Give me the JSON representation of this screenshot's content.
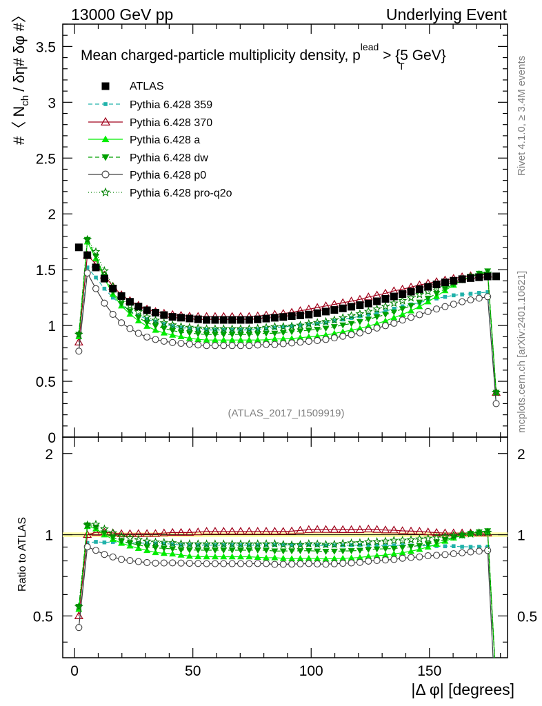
{
  "header": {
    "left": "13000 GeV pp",
    "right": "Underlying Event"
  },
  "side_text": {
    "rivet": "Rivet 4.1.0, ≥ 3.4M events",
    "mcplots": "mcplots.cern.ch [arXiv:2401.10621]"
  },
  "watermark": "(ATLAS_2017_I1509919)",
  "chart_data": {
    "type": "line",
    "title": {
      "main": "Mean charged-particle multiplicity density, p",
      "sup": "lead",
      "sub": "T",
      "tail": " > {5 GeV}"
    },
    "xlabel": "|Δ φ| [degrees]",
    "ylabel_main": {
      "a": "#〈 N",
      "sub": "ch",
      "b": "/ δη# δφ #〉"
    },
    "ylabel_ratio": "Ratio to ATLAS",
    "xlim": [
      -5,
      183
    ],
    "ylim": [
      0,
      3.7
    ],
    "ratio_ylim": [
      0.35,
      2.3
    ],
    "x_ticks": [
      "0",
      "50",
      "100",
      "150"
    ],
    "y_ticks": [
      "0",
      "0.5",
      "1",
      "1.5",
      "2",
      "2.5",
      "3",
      "3.5"
    ],
    "ratio_ticks_left": [
      "0.5",
      "1",
      "2"
    ],
    "ratio_ticks_right": [
      "0.5",
      "1",
      "2"
    ],
    "data_anchors_x": [
      1.8,
      5.4,
      9,
      12.6,
      16.2,
      20,
      25,
      30,
      35,
      40,
      45,
      50,
      55,
      60,
      65,
      70,
      75,
      80,
      85,
      90,
      95,
      100,
      105,
      110,
      115,
      120,
      125,
      130,
      135,
      140,
      145,
      150,
      155,
      160,
      165,
      170,
      175,
      178.2
    ],
    "legend": [
      "ATLAS",
      "Pythia 6.428 359",
      "Pythia 6.428 370",
      "Pythia 6.428 a",
      "Pythia 6.428 dw",
      "Pythia 6.428 p0",
      "Pythia 6.428 pro-q2o"
    ],
    "series": [
      {
        "name": "ATLAS",
        "color": "#000000",
        "marker": "square",
        "anchors_y": [
          1.7,
          1.63,
          1.52,
          1.42,
          1.33,
          1.26,
          1.19,
          1.14,
          1.11,
          1.08,
          1.07,
          1.06,
          1.05,
          1.05,
          1.05,
          1.05,
          1.05,
          1.06,
          1.07,
          1.08,
          1.09,
          1.1,
          1.12,
          1.14,
          1.16,
          1.18,
          1.2,
          1.23,
          1.26,
          1.29,
          1.32,
          1.35,
          1.38,
          1.4,
          1.42,
          1.43,
          1.44,
          1.44
        ]
      },
      {
        "name": "Pythia 6.428 359",
        "color": "#20B2AA",
        "marker": "small-square",
        "dash": "6,4",
        "anchors_y": [
          0.77,
          1.52,
          1.43,
          1.33,
          1.25,
          1.18,
          1.11,
          1.06,
          1.03,
          1.0,
          0.98,
          0.97,
          0.96,
          0.96,
          0.96,
          0.96,
          0.96,
          0.97,
          0.98,
          0.99,
          1.0,
          1.01,
          1.02,
          1.04,
          1.06,
          1.08,
          1.1,
          1.12,
          1.15,
          1.18,
          1.2,
          1.23,
          1.25,
          1.27,
          1.28,
          1.29,
          1.3,
          0.3
        ]
      },
      {
        "name": "Pythia 6.428 370",
        "color": "#A0001A",
        "marker": "open-triangle",
        "dash": "",
        "anchors_y": [
          0.85,
          1.63,
          1.55,
          1.45,
          1.35,
          1.27,
          1.2,
          1.15,
          1.12,
          1.1,
          1.09,
          1.08,
          1.08,
          1.08,
          1.08,
          1.08,
          1.08,
          1.09,
          1.1,
          1.11,
          1.13,
          1.15,
          1.17,
          1.19,
          1.21,
          1.23,
          1.26,
          1.28,
          1.31,
          1.33,
          1.36,
          1.38,
          1.4,
          1.42,
          1.44,
          1.45,
          1.46,
          0.4
        ]
      },
      {
        "name": "Pythia 6.428 a",
        "color": "#00EE00",
        "marker": "triangle",
        "dash": "",
        "anchors_y": [
          0.9,
          1.75,
          1.6,
          1.42,
          1.28,
          1.17,
          1.07,
          1.0,
          0.95,
          0.92,
          0.9,
          0.88,
          0.87,
          0.87,
          0.87,
          0.87,
          0.87,
          0.87,
          0.88,
          0.88,
          0.89,
          0.9,
          0.91,
          0.93,
          0.95,
          0.97,
          1.0,
          1.03,
          1.07,
          1.11,
          1.16,
          1.22,
          1.29,
          1.36,
          1.42,
          1.46,
          1.48,
          0.4
        ]
      },
      {
        "name": "Pythia 6.428 dw",
        "color": "#00A000",
        "marker": "inverted-triangle",
        "dash": "6,4",
        "anchors_y": [
          0.92,
          1.77,
          1.62,
          1.44,
          1.3,
          1.19,
          1.1,
          1.03,
          0.99,
          0.96,
          0.94,
          0.93,
          0.92,
          0.92,
          0.92,
          0.92,
          0.92,
          0.93,
          0.93,
          0.94,
          0.95,
          0.96,
          0.97,
          0.99,
          1.01,
          1.03,
          1.06,
          1.09,
          1.12,
          1.16,
          1.2,
          1.25,
          1.31,
          1.37,
          1.42,
          1.46,
          1.49,
          0.4
        ]
      },
      {
        "name": "Pythia 6.428 p0",
        "color": "#404040",
        "marker": "open-circle",
        "dash": "",
        "anchors_y": [
          0.77,
          1.47,
          1.33,
          1.2,
          1.1,
          1.02,
          0.95,
          0.9,
          0.87,
          0.85,
          0.84,
          0.83,
          0.82,
          0.82,
          0.82,
          0.82,
          0.82,
          0.83,
          0.83,
          0.84,
          0.85,
          0.86,
          0.87,
          0.89,
          0.91,
          0.93,
          0.96,
          0.99,
          1.02,
          1.06,
          1.09,
          1.13,
          1.16,
          1.19,
          1.22,
          1.24,
          1.26,
          0.3
        ]
      },
      {
        "name": "Pythia 6.428 pro-q2o",
        "color": "#008000",
        "marker": "star",
        "dash": "1,3",
        "anchors_y": [
          0.92,
          1.77,
          1.66,
          1.49,
          1.35,
          1.24,
          1.15,
          1.08,
          1.04,
          1.01,
          0.99,
          0.98,
          0.97,
          0.97,
          0.97,
          0.97,
          0.97,
          0.98,
          0.99,
          0.99,
          1.0,
          1.02,
          1.03,
          1.05,
          1.08,
          1.1,
          1.13,
          1.16,
          1.2,
          1.23,
          1.27,
          1.31,
          1.35,
          1.39,
          1.42,
          1.45,
          1.47,
          0.4
        ]
      }
    ]
  }
}
